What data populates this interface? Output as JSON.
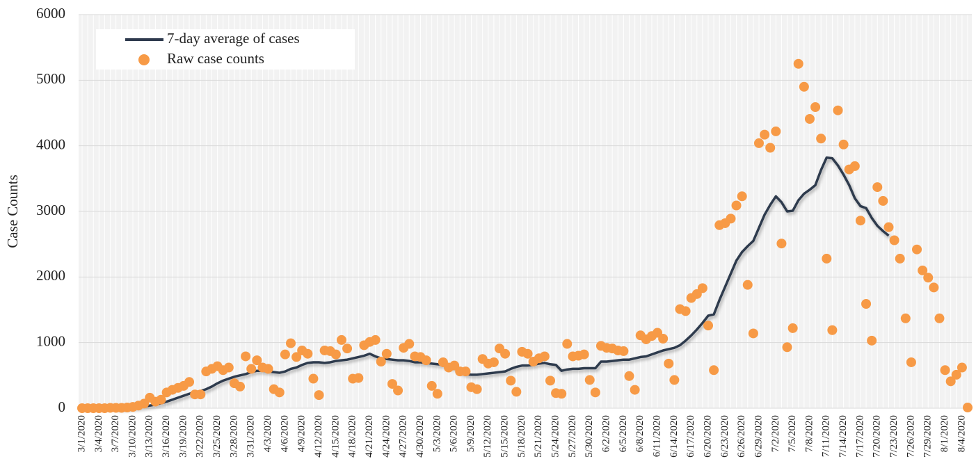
{
  "chart_data": {
    "type": "scatter-line",
    "y_label": "Case Counts",
    "categories": [
      "3/1/2020",
      null,
      null,
      "3/4/2020",
      null,
      null,
      "3/7/2020",
      null,
      null,
      "3/10/2020",
      null,
      null,
      "3/13/2020",
      null,
      null,
      "3/16/2020",
      null,
      null,
      "3/19/2020",
      null,
      null,
      "3/22/2020",
      null,
      null,
      "3/25/2020",
      null,
      null,
      "3/28/2020",
      null,
      null,
      "3/31/2020",
      null,
      null,
      "4/3/2020",
      null,
      null,
      "4/6/2020",
      null,
      null,
      "4/9/2020",
      null,
      null,
      "4/12/2020",
      null,
      null,
      "4/15/2020",
      null,
      null,
      "4/18/2020",
      null,
      null,
      "4/21/2020",
      null,
      null,
      "4/24/2020",
      null,
      null,
      "4/27/2020",
      null,
      null,
      "4/30/2020",
      null,
      null,
      "5/3/2020",
      null,
      null,
      "5/6/2020",
      null,
      null,
      "5/9/2020",
      null,
      null,
      "5/12/2020",
      null,
      null,
      "5/15/2020",
      null,
      null,
      "5/18/2020",
      null,
      null,
      "5/21/2020",
      null,
      null,
      "5/24/2020",
      null,
      null,
      "5/27/2020",
      null,
      null,
      "5/30/2020",
      null,
      null,
      "6/2/2020",
      null,
      null,
      "6/5/2020",
      null,
      null,
      "6/8/2020",
      null,
      null,
      "6/11/2020",
      null,
      null,
      "6/14/2020",
      null,
      null,
      "6/17/2020",
      null,
      null,
      "6/20/2020",
      null,
      null,
      "6/23/2020",
      null,
      null,
      "6/26/2020",
      null,
      null,
      "6/29/2020",
      null,
      null,
      "7/2/2020",
      null,
      null,
      "7/5/2020",
      null,
      null,
      "7/8/2020",
      null,
      null,
      "7/11/2020",
      null,
      null,
      "7/14/2020",
      null,
      null,
      "7/17/2020",
      null,
      null,
      "7/20/2020",
      null,
      null,
      "7/23/2020",
      null,
      null,
      "7/26/2020",
      null,
      null,
      "7/29/2020",
      null,
      null,
      "8/1/2020",
      null,
      null,
      "8/4/2020",
      null
    ],
    "series": [
      {
        "name": "7-day average of cases",
        "kind": "line",
        "color": "#2e3a4e",
        "values": [
          null,
          null,
          null,
          null,
          null,
          null,
          2,
          3,
          5,
          8,
          15,
          25,
          40,
          55,
          75,
          100,
          130,
          160,
          190,
          220,
          245,
          260,
          290,
          330,
          380,
          420,
          450,
          480,
          500,
          520,
          550,
          570,
          570,
          560,
          550,
          540,
          560,
          600,
          620,
          660,
          690,
          700,
          700,
          690,
          700,
          720,
          730,
          740,
          760,
          780,
          800,
          830,
          790,
          760,
          750,
          740,
          730,
          730,
          720,
          700,
          700,
          690,
          680,
          670,
          660,
          640,
          620,
          560,
          520,
          510,
          510,
          520,
          530,
          540,
          550,
          560,
          600,
          630,
          650,
          650,
          660,
          680,
          690,
          670,
          660,
          570,
          590,
          600,
          600,
          610,
          610,
          610,
          710,
          710,
          720,
          730,
          740,
          740,
          760,
          780,
          790,
          820,
          850,
          880,
          900,
          920,
          960,
          1030,
          1110,
          1200,
          1300,
          1410,
          1430,
          1650,
          1850,
          2050,
          2250,
          2380,
          2470,
          2550,
          2750,
          2950,
          3100,
          3230,
          3140,
          3000,
          3010,
          3170,
          3270,
          3330,
          3400,
          3630,
          3820,
          3810,
          3700,
          3560,
          3400,
          3200,
          3080,
          3050,
          2900,
          2780,
          2700,
          2630,
          null,
          null,
          null,
          null,
          null,
          null,
          null,
          null,
          null,
          null,
          null,
          null,
          null,
          null
        ]
      },
      {
        "name": "Raw case counts",
        "kind": "scatter",
        "color": "#f79a46",
        "values": [
          0,
          0,
          0,
          0,
          0,
          5,
          5,
          5,
          10,
          20,
          40,
          70,
          160,
          100,
          130,
          240,
          280,
          310,
          340,
          400,
          210,
          210,
          560,
          600,
          640,
          580,
          620,
          380,
          330,
          790,
          600,
          730,
          620,
          600,
          290,
          240,
          820,
          990,
          780,
          880,
          830,
          450,
          200,
          880,
          870,
          820,
          1040,
          910,
          450,
          460,
          960,
          1010,
          1040,
          710,
          830,
          370,
          270,
          920,
          980,
          790,
          780,
          730,
          340,
          220,
          700,
          620,
          650,
          560,
          560,
          320,
          290,
          750,
          680,
          700,
          910,
          830,
          420,
          250,
          860,
          830,
          710,
          760,
          790,
          420,
          230,
          220,
          980,
          790,
          800,
          820,
          430,
          240,
          950,
          920,
          910,
          880,
          870,
          490,
          280,
          1110,
          1050,
          1100,
          1150,
          1060,
          680,
          430,
          1510,
          1480,
          1680,
          1740,
          1830,
          1260,
          580,
          2790,
          2820,
          2890,
          3090,
          3230,
          1880,
          1140,
          4040,
          4170,
          3970,
          4220,
          2510,
          930,
          1220,
          5250,
          4900,
          4410,
          4590,
          4110,
          2280,
          1190,
          4540,
          4020,
          3640,
          3690,
          2860,
          1590,
          1030,
          3370,
          3160,
          2760,
          2560,
          2280,
          1370,
          700,
          2420,
          2100,
          1990,
          1840,
          1370,
          580,
          410,
          510,
          620,
          10
        ]
      }
    ],
    "ylim": [
      0,
      6000
    ],
    "yticks": [
      0,
      1000,
      2000,
      3000,
      4000,
      5000,
      6000
    ],
    "grid": true,
    "legend": "upper left"
  }
}
